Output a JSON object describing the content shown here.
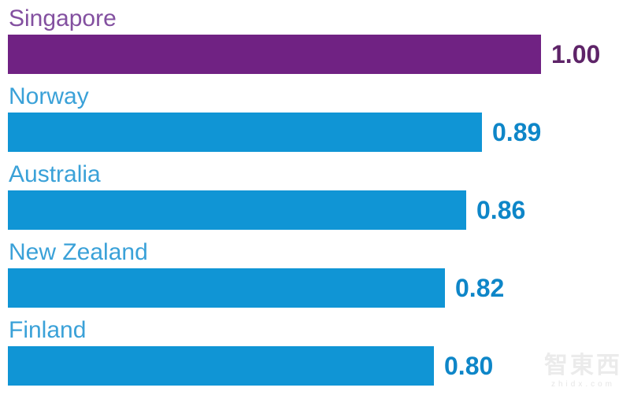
{
  "chart_data": {
    "type": "bar",
    "orientation": "horizontal",
    "title": "",
    "xlabel": "",
    "ylabel": "",
    "grid": false,
    "legend": "none",
    "xlim": [
      0,
      1.0
    ],
    "categories": [
      "Singapore",
      "Norway",
      "Australia",
      "New Zealand",
      "Finland"
    ],
    "values": [
      1.0,
      0.89,
      0.86,
      0.82,
      0.8
    ],
    "value_labels": [
      "1.00",
      "0.89",
      "0.86",
      "0.82",
      "0.80"
    ],
    "highlight_category": "Singapore",
    "bar_colors": [
      "#702283",
      "#1095d5",
      "#1095d5",
      "#1095d5",
      "#1095d5"
    ],
    "label_colors": [
      "#8350a0",
      "#3aa1d8",
      "#3aa1d8",
      "#3aa1d8",
      "#3aa1d8"
    ],
    "value_colors": [
      "#5e2468",
      "#0e86c8",
      "#0e86c8",
      "#0e86c8",
      "#0e86c8"
    ],
    "bar_widths": [
      "677px",
      "602px",
      "582px",
      "555px",
      "541px"
    ]
  },
  "watermark": {
    "logo_text": "智東西",
    "domain_text": "zhidx.com",
    "color": "#ebebeb",
    "domain_color": "#e6e6e6"
  }
}
